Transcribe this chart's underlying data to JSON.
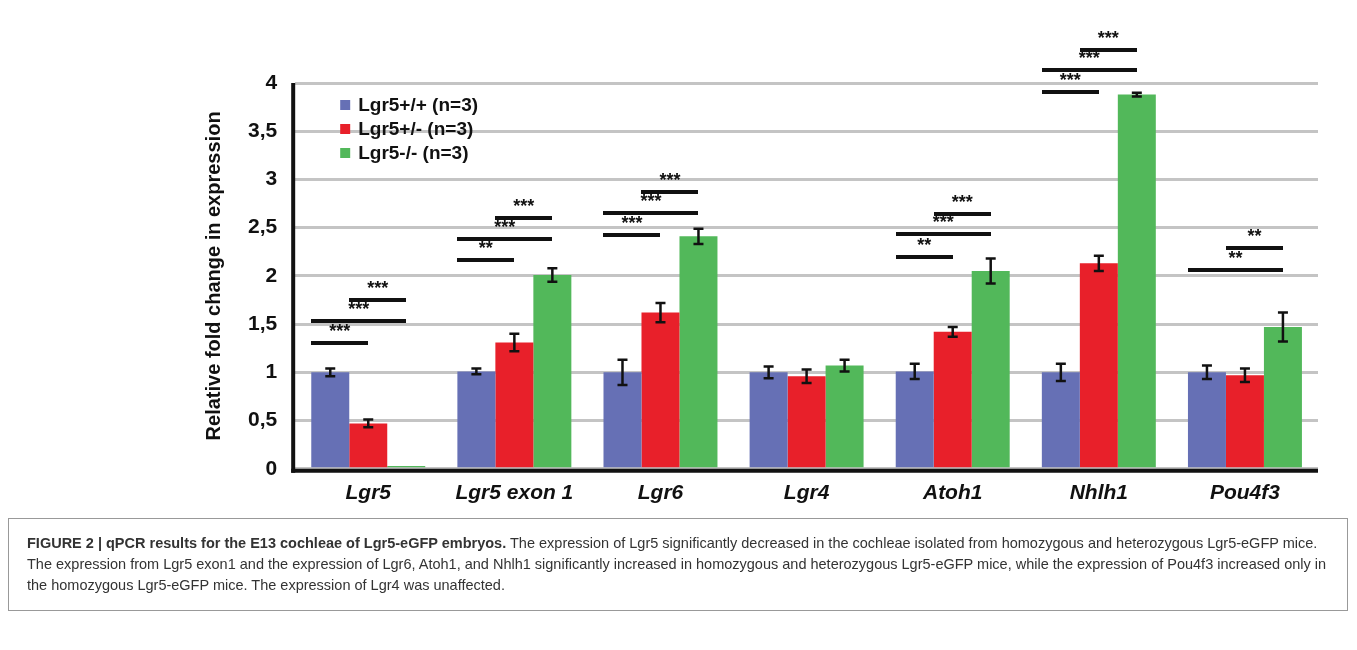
{
  "chart_data": {
    "type": "bar",
    "title": "FIGURE 2 | qPCR results for the E13 cochleae of Lgr5-eGFP embryos.",
    "ylabel": "Relative fold change in expression",
    "categories": [
      "Lgr5",
      "Lgr5 exon 1",
      "Lgr6",
      "Lgr4",
      "Atoh1",
      "Nhlh1",
      "Pou4f3"
    ],
    "series": [
      {
        "name": "Lgr5+/+ (n=3)",
        "color": "#6670b5",
        "values": [
          1.0,
          1.01,
          1.0,
          1.0,
          1.01,
          1.0,
          1.0
        ],
        "errors": [
          0.04,
          0.03,
          0.13,
          0.06,
          0.08,
          0.09,
          0.07
        ]
      },
      {
        "name": "Lgr5+/- (n=3)",
        "color": "#e8202a",
        "values": [
          0.47,
          1.31,
          1.62,
          0.96,
          1.42,
          2.13,
          0.97
        ],
        "errors": [
          0.04,
          0.09,
          0.1,
          0.07,
          0.05,
          0.08,
          0.07
        ]
      },
      {
        "name": "Lgr5-/- (n=3)",
        "color": "#52b85a",
        "values": [
          0.03,
          2.01,
          2.41,
          1.07,
          2.05,
          3.88,
          1.47
        ],
        "errors": [
          null,
          0.07,
          0.08,
          0.06,
          0.13,
          0.02,
          0.15
        ]
      }
    ],
    "ylim": [
      0,
      4
    ],
    "yticks": [
      0,
      {
        "value": 0.5,
        "label": "0,5"
      },
      1,
      {
        "value": 1.5,
        "label": "1,5"
      },
      2,
      {
        "value": 2.5,
        "label": "2,5"
      },
      3,
      {
        "value": 3.5,
        "label": "3,5"
      },
      4
    ],
    "grid": "y",
    "legend": "top left",
    "annotations": [
      "***",
      "***",
      "***",
      "**",
      "***",
      "***",
      "***",
      "***",
      "***",
      "**",
      "***",
      "***",
      "***",
      "***",
      "***",
      "**",
      "**",
      "The expression of Lgr5 significantly decreased in the cochleae isolated from homozygous and heterozygous Lgr5-eGFP mice. The expression from Lgr5 exon1 and the expression of Lgr6, Atoh1, and Nhlh1 significantly increased in homozygous and heterozygous Lgr5-eGFP mice, while the expression of Pou4f3 increased only in the homozygous Lgr5-eGFP mice. The expression of Lgr4 was unaffected."
    ]
  }
}
